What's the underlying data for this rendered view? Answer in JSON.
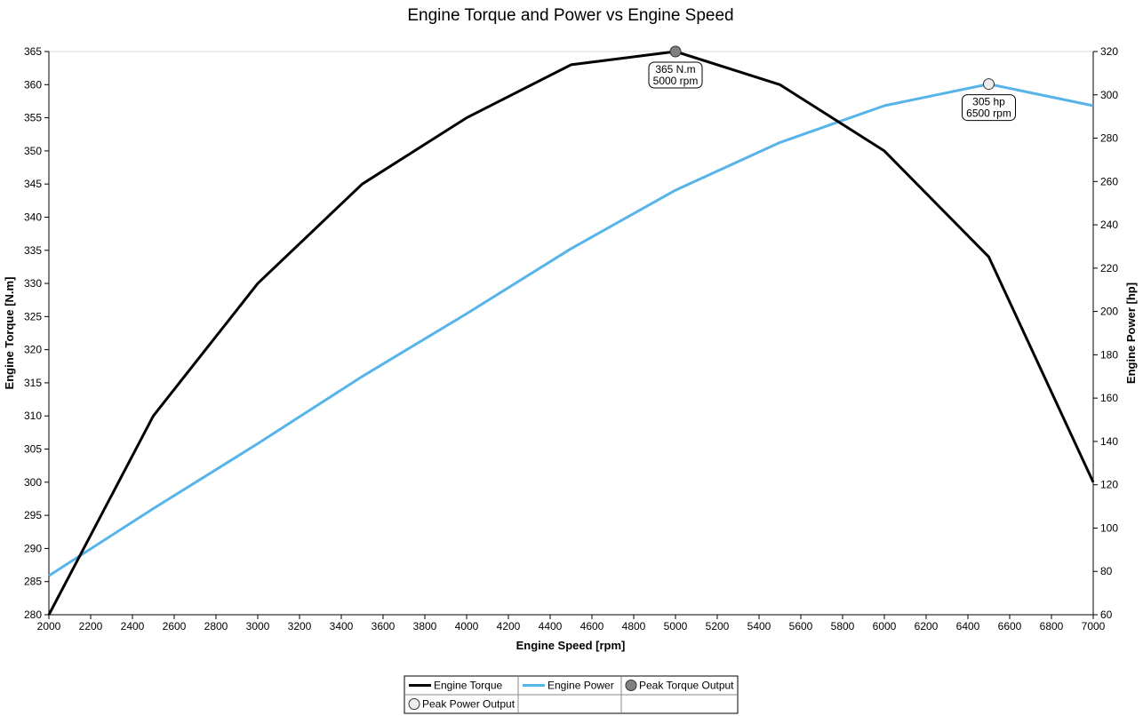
{
  "chart_data": {
    "type": "line",
    "title": "Engine Torque and Power vs Engine Speed",
    "xlabel": "Engine Speed [rpm]",
    "ylabel": "Engine Torque [N.m]",
    "y2label": "Engine Power [hp]",
    "xlim": [
      2000,
      7000
    ],
    "ylim": [
      280,
      365
    ],
    "y2lim": [
      60,
      320
    ],
    "x_ticks": [
      "2000",
      "2200",
      "2400",
      "2600",
      "2800",
      "3000",
      "3200",
      "3400",
      "3600",
      "3800",
      "4000",
      "4200",
      "4400",
      "4600",
      "4800",
      "5000",
      "5200",
      "5400",
      "5600",
      "5800",
      "6000",
      "6200",
      "6400",
      "6600",
      "6800",
      "7000"
    ],
    "y_ticks": [
      "280",
      "285",
      "290",
      "295",
      "300",
      "305",
      "310",
      "315",
      "320",
      "325",
      "330",
      "335",
      "340",
      "345",
      "350",
      "355",
      "360",
      "365"
    ],
    "y2_ticks": [
      "60",
      "80",
      "100",
      "120",
      "140",
      "160",
      "180",
      "200",
      "220",
      "240",
      "260",
      "280",
      "300",
      "320"
    ],
    "grid": "top line only",
    "legend_position": "bottom",
    "series": [
      {
        "name": "Engine Torque",
        "axis": "left",
        "color": "#000000",
        "x": [
          2000,
          2500,
          3000,
          3500,
          4000,
          4500,
          5000,
          5500,
          6000,
          6500,
          7000
        ],
        "y": [
          280,
          310,
          330,
          345,
          355,
          363,
          365,
          360,
          350,
          334,
          300
        ]
      },
      {
        "name": "Engine Power",
        "axis": "right",
        "color": "#56b4e9",
        "x": [
          2000,
          2500,
          3000,
          3500,
          4000,
          4500,
          5000,
          5500,
          6000,
          6500,
          7000
        ],
        "y": [
          78,
          109,
          139,
          170,
          199,
          229,
          256,
          278,
          295,
          305,
          295
        ]
      }
    ],
    "markers": [
      {
        "name": "Peak Torque Output",
        "axis": "left",
        "x": 5000,
        "y": 365,
        "color": "#808080",
        "label_line1": "365  N.m",
        "label_line2": "5000 rpm"
      },
      {
        "name": "Peak Power Output",
        "axis": "right",
        "x": 6500,
        "y": 305,
        "color": "#eeeeee",
        "label_line1": "305 hp",
        "label_line2": "6500 rpm"
      }
    ],
    "legend": [
      "Engine Torque",
      "Engine Power",
      "Peak Torque Output",
      "Peak Power Output"
    ]
  }
}
